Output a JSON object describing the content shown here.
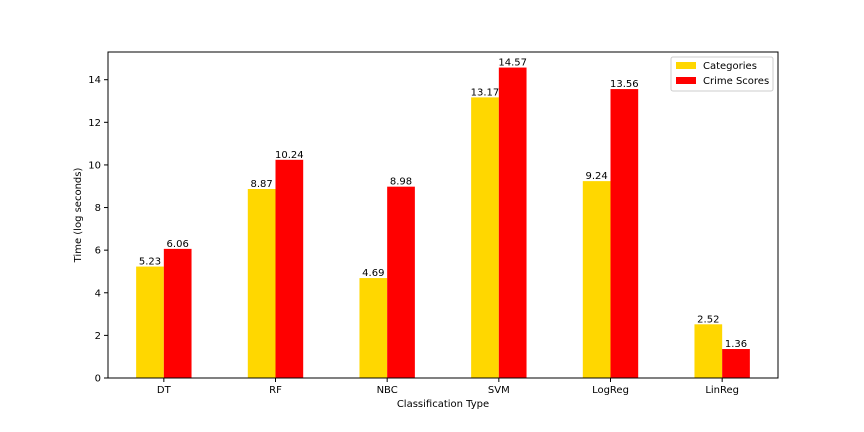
{
  "chart_data": {
    "type": "bar",
    "title": "",
    "xlabel": "Classification Type",
    "ylabel": "Time (log seconds)",
    "categories": [
      "DT",
      "RF",
      "NBC",
      "SVM",
      "LogReg",
      "LinReg"
    ],
    "series": [
      {
        "name": "Categories",
        "color": "#ffd700",
        "values": [
          5.23,
          8.87,
          4.69,
          13.17,
          9.24,
          2.52
        ]
      },
      {
        "name": "Crime Scores",
        "color": "#ff0000",
        "values": [
          6.06,
          10.24,
          8.98,
          14.57,
          13.56,
          1.36
        ]
      }
    ],
    "ylim": [
      0,
      15.3
    ],
    "yticks": [
      0,
      2,
      4,
      6,
      8,
      10,
      12,
      14
    ],
    "grid": false,
    "legend_position": "top-right",
    "data_labels": true
  }
}
